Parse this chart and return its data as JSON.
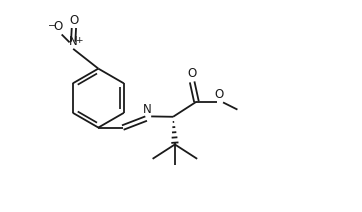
{
  "bg_color": "#ffffff",
  "line_color": "#1a1a1a",
  "line_width": 1.3,
  "figsize": [
    3.62,
    2.12
  ],
  "dpi": 100,
  "xlim": [
    0,
    10
  ],
  "ylim": [
    0,
    5.86
  ]
}
